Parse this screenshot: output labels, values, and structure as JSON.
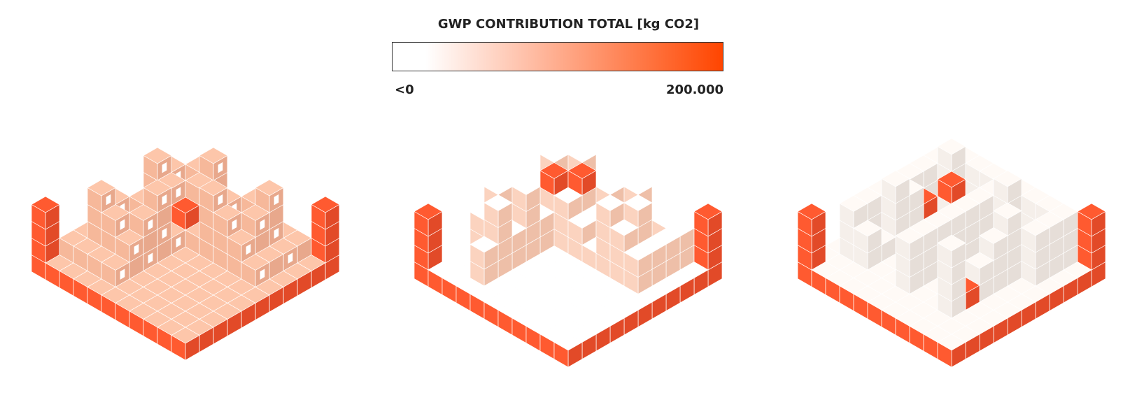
{
  "legend": {
    "title": "GWP CONTRIBUTION TOTAL [kg CO2]",
    "min_label": "<0",
    "max_label": "200.000",
    "colors": [
      "#ffffff",
      "#ff4500"
    ]
  }
}
